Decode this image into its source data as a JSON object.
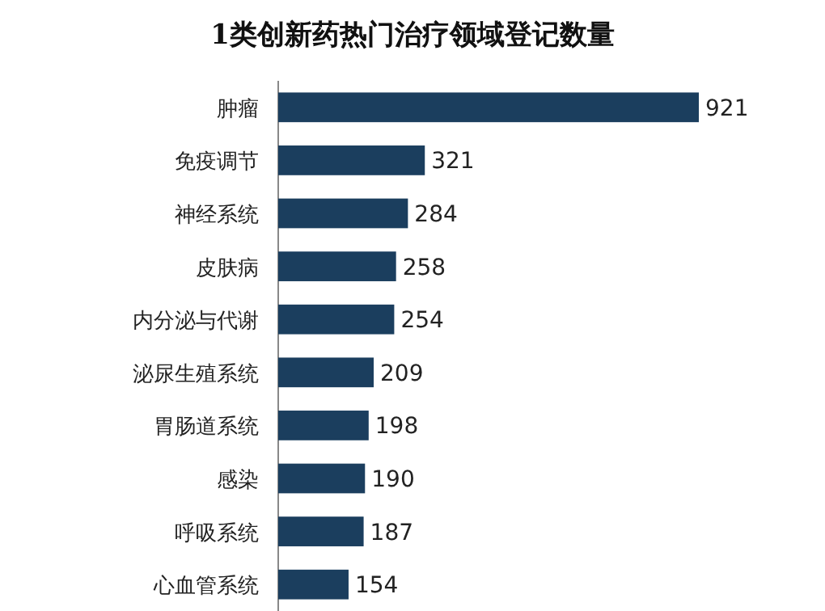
{
  "chart_data": {
    "type": "bar",
    "orientation": "horizontal",
    "title": "1类创新药热门治疗领域登记数量",
    "categories": [
      "肿瘤",
      "免疫调节",
      "神经系统",
      "皮肤病",
      "内分泌与代谢",
      "泌尿生殖系统",
      "胃肠道系统",
      "感染",
      "呼吸系统",
      "心血管系统"
    ],
    "values": [
      921,
      321,
      284,
      258,
      254,
      209,
      198,
      190,
      187,
      154
    ],
    "color": "#1b3e5e",
    "data_labels": true
  }
}
